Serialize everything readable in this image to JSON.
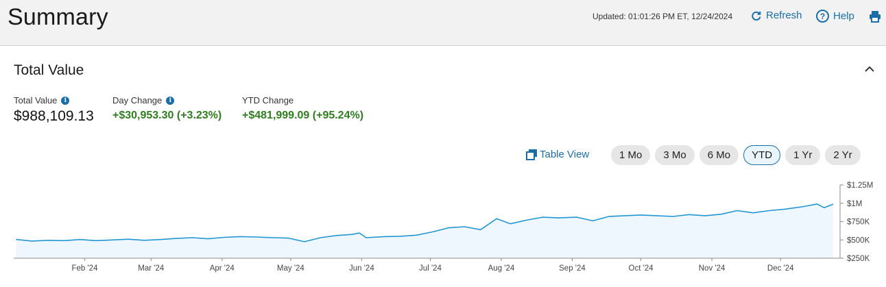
{
  "header": {
    "title": "Summary",
    "updated": "Updated: 01:01:26 PM ET, 12/24/2024",
    "refresh_label": "Refresh",
    "help_label": "Help",
    "help_glyph": "?"
  },
  "panel": {
    "title": "Total Value",
    "metrics": [
      {
        "label": "Total Value",
        "value": "$988,109.13",
        "info": "i"
      },
      {
        "label": "Day Change",
        "value": "+$30,953.30 (+3.23%)",
        "info": "i"
      },
      {
        "label": "YTD Change",
        "value": "+$481,999.09 (+95.24%)"
      }
    ],
    "table_view_label": "Table View",
    "ranges": [
      "1 Mo",
      "3 Mo",
      "6 Mo",
      "YTD",
      "1 Yr",
      "2 Yr"
    ],
    "active_range": "YTD"
  },
  "colors": {
    "accent": "#1a6ea8",
    "gain": "#2e7d1f",
    "line": "#2196d3",
    "fill": "#eef7fd"
  },
  "chart_data": {
    "type": "area",
    "x_ticks": [
      "Feb '24",
      "Mar '24",
      "Apr '24",
      "May '24",
      "Jun '24",
      "Jul '24",
      "Aug '24",
      "Sep '24",
      "Oct '24",
      "Nov '24",
      "Dec '24"
    ],
    "y_ticks": [
      "$250K",
      "$500K",
      "$750K",
      "$1M",
      "$1.25M"
    ],
    "ylim": [
      250000,
      1250000
    ],
    "x": [
      "2024-01-02",
      "2024-01-09",
      "2024-01-16",
      "2024-01-23",
      "2024-01-30",
      "2024-02-06",
      "2024-02-13",
      "2024-02-20",
      "2024-02-27",
      "2024-03-05",
      "2024-03-12",
      "2024-03-19",
      "2024-03-26",
      "2024-04-02",
      "2024-04-09",
      "2024-04-16",
      "2024-04-23",
      "2024-04-30",
      "2024-05-07",
      "2024-05-14",
      "2024-05-21",
      "2024-05-28",
      "2024-05-31",
      "2024-06-03",
      "2024-06-11",
      "2024-06-18",
      "2024-06-25",
      "2024-07-02",
      "2024-07-09",
      "2024-07-16",
      "2024-07-23",
      "2024-07-30",
      "2024-08-05",
      "2024-08-12",
      "2024-08-19",
      "2024-08-26",
      "2024-09-03",
      "2024-09-10",
      "2024-09-17",
      "2024-09-24",
      "2024-10-01",
      "2024-10-08",
      "2024-10-15",
      "2024-10-22",
      "2024-10-29",
      "2024-11-05",
      "2024-11-12",
      "2024-11-19",
      "2024-11-26",
      "2024-12-03",
      "2024-12-10",
      "2024-12-17",
      "2024-12-20",
      "2024-12-24"
    ],
    "values": [
      506000,
      485000,
      495000,
      490000,
      505000,
      490000,
      500000,
      510000,
      495000,
      505000,
      520000,
      530000,
      515000,
      535000,
      545000,
      540000,
      530000,
      525000,
      475000,
      530000,
      560000,
      575000,
      595000,
      530000,
      545000,
      550000,
      565000,
      610000,
      665000,
      680000,
      640000,
      790000,
      720000,
      770000,
      810000,
      800000,
      810000,
      760000,
      820000,
      830000,
      840000,
      830000,
      820000,
      845000,
      830000,
      850000,
      900000,
      870000,
      900000,
      920000,
      950000,
      990000,
      940000,
      988109
    ]
  }
}
